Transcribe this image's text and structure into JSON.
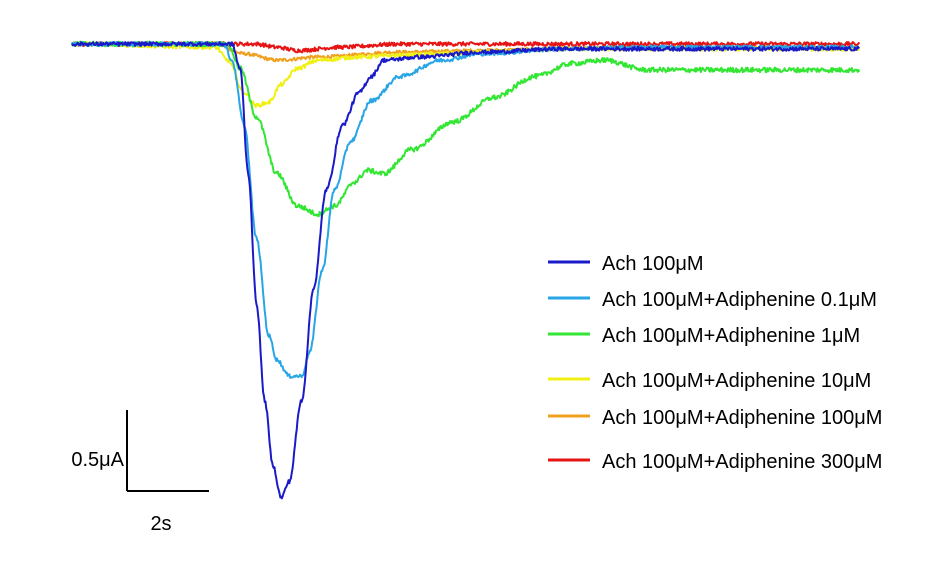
{
  "chart_data": {
    "type": "line",
    "title": "",
    "xlabel": "",
    "ylabel": "",
    "scale_bar": {
      "current_label": "0.5μA",
      "current_value": 0.5,
      "time_label": "2s",
      "time_value": 2
    },
    "x_unit": "s",
    "y_unit": "μA",
    "legend_position": "right",
    "series": [
      {
        "name": "Ach 100μM",
        "color": "#1a1ac8",
        "noise": 0.012,
        "points": [
          [
            0,
            0
          ],
          [
            3.9,
            0
          ],
          [
            4.1,
            -0.15
          ],
          [
            4.3,
            -0.8
          ],
          [
            4.5,
            -1.6
          ],
          [
            4.7,
            -2.2
          ],
          [
            4.9,
            -2.6
          ],
          [
            5.1,
            -2.8
          ],
          [
            5.3,
            -2.7
          ],
          [
            5.6,
            -2.2
          ],
          [
            5.9,
            -1.5
          ],
          [
            6.2,
            -0.9
          ],
          [
            6.6,
            -0.5
          ],
          [
            7.0,
            -0.3
          ],
          [
            7.3,
            -0.2
          ],
          [
            7.6,
            -0.1
          ],
          [
            8.5,
            -0.08
          ],
          [
            10,
            -0.05
          ],
          [
            12,
            -0.03
          ],
          [
            14,
            -0.03
          ]
        ]
      },
      {
        "name": "Ach 100μM+Adiphenine 0.1μM",
        "color": "#28a5e6",
        "noise": 0.012,
        "points": [
          [
            0,
            0
          ],
          [
            3.7,
            0
          ],
          [
            3.9,
            -0.1
          ],
          [
            4.2,
            -0.5
          ],
          [
            4.5,
            -1.2
          ],
          [
            4.8,
            -1.8
          ],
          [
            5.0,
            -1.95
          ],
          [
            5.3,
            -2.05
          ],
          [
            5.6,
            -2.05
          ],
          [
            5.8,
            -1.9
          ],
          [
            6.1,
            -1.4
          ],
          [
            6.4,
            -0.9
          ],
          [
            6.8,
            -0.6
          ],
          [
            7.3,
            -0.35
          ],
          [
            8,
            -0.2
          ],
          [
            9,
            -0.1
          ],
          [
            10,
            -0.06
          ],
          [
            12,
            -0.03
          ],
          [
            14,
            -0.02
          ]
        ]
      },
      {
        "name": "Ach 100μM+Adiphenine 1μM",
        "color": "#33e633",
        "noise": 0.015,
        "points": [
          [
            0,
            0
          ],
          [
            3.8,
            0
          ],
          [
            4.1,
            -0.15
          ],
          [
            4.5,
            -0.45
          ],
          [
            5.0,
            -0.8
          ],
          [
            5.5,
            -1.0
          ],
          [
            6.0,
            -1.05
          ],
          [
            6.4,
            -1.0
          ],
          [
            6.9,
            -0.85
          ],
          [
            7.2,
            -0.78
          ],
          [
            7.6,
            -0.8
          ],
          [
            8.3,
            -0.65
          ],
          [
            9.3,
            -0.48
          ],
          [
            10.3,
            -0.33
          ],
          [
            11.3,
            -0.2
          ],
          [
            12.2,
            -0.12
          ],
          [
            13.0,
            -0.1
          ],
          [
            14.0,
            -0.16
          ]
        ]
      },
      {
        "name": "Ach 100μM+Adiphenine 10μM",
        "color": "#f0f014",
        "noise": 0.012,
        "points": [
          [
            0,
            0
          ],
          [
            3.5,
            -0.02
          ],
          [
            3.8,
            -0.1
          ],
          [
            4.2,
            -0.3
          ],
          [
            4.5,
            -0.38
          ],
          [
            4.8,
            -0.36
          ],
          [
            5.1,
            -0.25
          ],
          [
            5.5,
            -0.15
          ],
          [
            6.0,
            -0.1
          ],
          [
            7,
            -0.08
          ],
          [
            8,
            -0.07
          ],
          [
            9,
            -0.06
          ],
          [
            10,
            -0.05
          ],
          [
            12,
            -0.03
          ],
          [
            14,
            -0.03
          ]
        ]
      },
      {
        "name": "Ach 100μM+Adiphenine 100μM",
        "color": "#f0a01e",
        "noise": 0.01,
        "points": [
          [
            0,
            0
          ],
          [
            3.5,
            0
          ],
          [
            4.2,
            -0.06
          ],
          [
            5.0,
            -0.1
          ],
          [
            6,
            -0.08
          ],
          [
            8,
            -0.05
          ],
          [
            10,
            -0.04
          ],
          [
            12,
            -0.03
          ],
          [
            14,
            -0.02
          ]
        ]
      },
      {
        "name": "Ach 100μM+Adiphenine 300μM",
        "color": "#e61414",
        "noise": 0.012,
        "points": [
          [
            0,
            0
          ],
          [
            4.5,
            0
          ],
          [
            5.0,
            -0.02
          ],
          [
            5.5,
            -0.04
          ],
          [
            6.5,
            -0.02
          ],
          [
            8,
            0
          ],
          [
            10,
            0
          ],
          [
            12,
            0
          ],
          [
            14,
            0
          ]
        ]
      }
    ]
  }
}
